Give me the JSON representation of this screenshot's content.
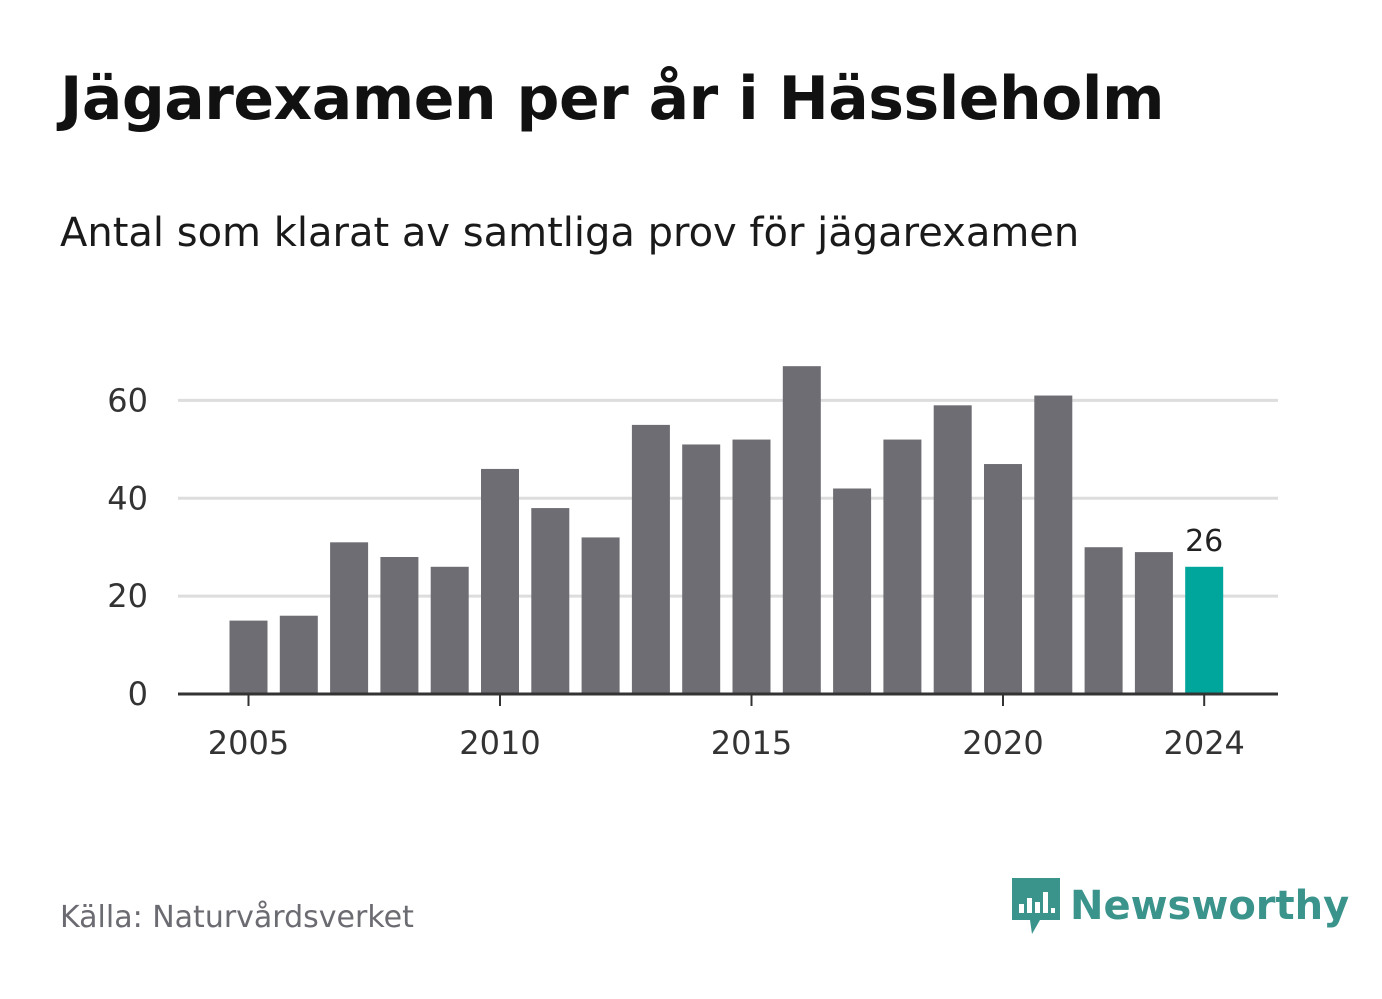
{
  "title": "Jägarexamen per år i Hässleholm",
  "subtitle": "Antal som klarat av samtliga prov för jägarexamen",
  "source": "Källa: Naturvårdsverket",
  "brand": {
    "name": "Newsworthy",
    "icon": "newsworthy-logo-icon",
    "color": "#3b948c"
  },
  "colors": {
    "bar": "#6e6d73",
    "highlight": "#00a59b",
    "grid": "#dddddd",
    "axis": "#333333"
  },
  "chart_data": {
    "type": "bar",
    "categories": [
      2005,
      2006,
      2007,
      2008,
      2009,
      2010,
      2011,
      2012,
      2013,
      2014,
      2015,
      2016,
      2017,
      2018,
      2019,
      2020,
      2021,
      2022,
      2023,
      2024
    ],
    "values": [
      15,
      16,
      31,
      28,
      26,
      46,
      38,
      32,
      55,
      51,
      52,
      67,
      42,
      52,
      59,
      47,
      61,
      30,
      29,
      26
    ],
    "highlight_index": 19,
    "data_labels": [
      {
        "index": 19,
        "text": "26"
      }
    ],
    "x_ticks": [
      "2005",
      "2010",
      "2015",
      "2020",
      "2024"
    ],
    "y_ticks": [
      0,
      20,
      40,
      60
    ],
    "ylim": [
      0,
      70
    ],
    "grid": true,
    "legend": "none"
  }
}
